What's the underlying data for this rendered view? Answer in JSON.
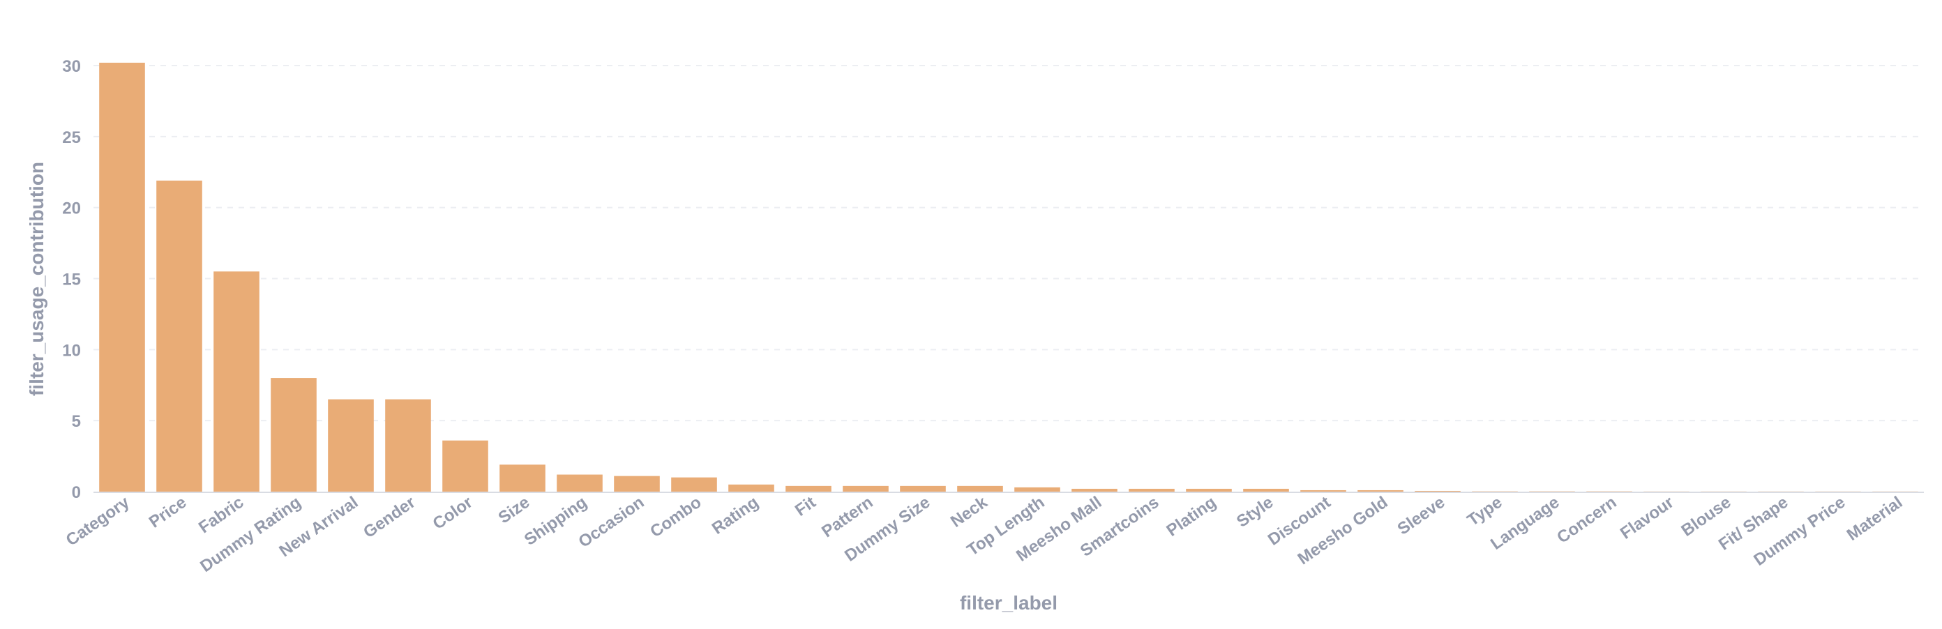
{
  "chart_data": {
    "type": "bar",
    "xlabel": "filter_label",
    "ylabel": "filter_usage_contribution",
    "ylim": [
      0,
      30
    ],
    "yticks": [
      0,
      5,
      10,
      15,
      20,
      25,
      30
    ],
    "grid": "horizontal dashed",
    "bar_color": "#e9ac76",
    "categories": [
      "Category",
      "Price",
      "Fabric",
      "Dummy Rating",
      "New Arrival",
      "Gender",
      "Color",
      "Size",
      "Shipping",
      "Occasion",
      "Combo",
      "Rating",
      "Fit",
      "Pattern",
      "Dummy Size",
      "Neck",
      "Top Length",
      "Meesho Mall",
      "Smartcoins",
      "Plating",
      "Style",
      "Discount",
      "Meesho Gold",
      "Sleeve",
      "Type",
      "Language",
      "Concern",
      "Flavour",
      "Blouse",
      "Fit/ Shape",
      "Dummy Price",
      "Material"
    ],
    "values": [
      30.2,
      21.9,
      15.5,
      8.0,
      6.5,
      6.5,
      3.6,
      1.9,
      1.2,
      1.1,
      1.0,
      0.5,
      0.4,
      0.4,
      0.4,
      0.4,
      0.3,
      0.2,
      0.2,
      0.2,
      0.2,
      0.1,
      0.1,
      0.05,
      0.02,
      0.02,
      0.02,
      0.01,
      0.01,
      0.01,
      0.01,
      0.01
    ]
  }
}
